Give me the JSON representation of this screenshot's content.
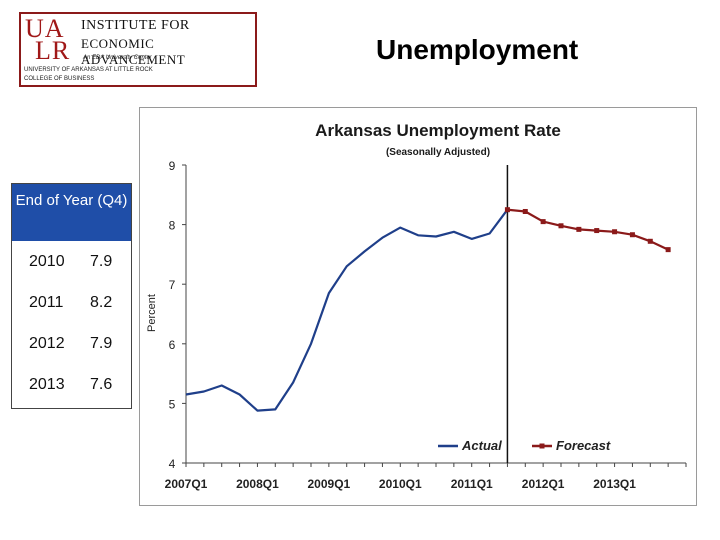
{
  "logo": {
    "mark_top": "UA",
    "mark_bottom": "LR",
    "line1": "Institute for",
    "line2": "Economic Advancement",
    "line3": "An EDA University Center",
    "line4": "University of Arkansas at Little Rock",
    "line5": "College of Business"
  },
  "slide_title": "Unemployment",
  "q4_table": {
    "header": "End of Year (Q4)",
    "rows": [
      {
        "year": "2010",
        "value": "7.9"
      },
      {
        "year": "2011",
        "value": "8.2"
      },
      {
        "year": "2012",
        "value": "7.9"
      },
      {
        "year": "2013",
        "value": "7.6"
      }
    ]
  },
  "chart_data": {
    "type": "line",
    "title": "Arkansas Unemployment Rate",
    "subtitle": "(Seasonally Adjusted)",
    "ylabel": "Percent",
    "xlabel": "",
    "ylim": [
      4,
      9
    ],
    "yticks": [
      4,
      5,
      6,
      7,
      8,
      9
    ],
    "x_tick_labels": [
      "2007Q1",
      "2008Q1",
      "2009Q1",
      "2010Q1",
      "2011Q1",
      "2012Q1",
      "2013Q1"
    ],
    "x_tick_positions": [
      0,
      4,
      8,
      12,
      16,
      20,
      24
    ],
    "forecast_start": 18,
    "legend": {
      "position": "bottom-right",
      "entries": [
        "Actual",
        "Forecast"
      ]
    },
    "colors": {
      "actual": "#1f3f8a",
      "forecast": "#8b1a1a",
      "title": "#1a1a1a",
      "axis": "#444444"
    },
    "series": [
      {
        "name": "Actual",
        "x": [
          0,
          1,
          2,
          3,
          4,
          5,
          6,
          7,
          8,
          9,
          10,
          11,
          12,
          13,
          14,
          15,
          16,
          17,
          18
        ],
        "values": [
          5.15,
          5.2,
          5.3,
          5.15,
          4.88,
          4.9,
          5.35,
          6.0,
          6.85,
          7.3,
          7.55,
          7.78,
          7.95,
          7.82,
          7.8,
          7.88,
          7.76,
          7.85,
          8.25
        ]
      },
      {
        "name": "Forecast",
        "x": [
          18,
          19,
          20,
          21,
          22,
          23,
          24,
          25,
          26,
          27
        ],
        "values": [
          8.25,
          8.22,
          8.05,
          7.98,
          7.92,
          7.9,
          7.88,
          7.83,
          7.72,
          7.58
        ]
      }
    ]
  }
}
